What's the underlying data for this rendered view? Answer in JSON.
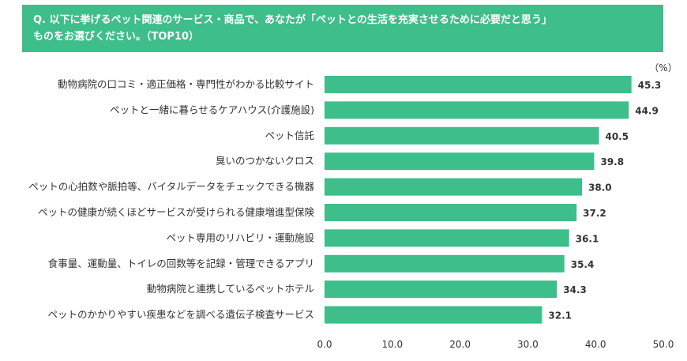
{
  "header": {
    "line1": "Q. 以下に挙げるペット関連のサービス・商品で、あなたが「ペットとの生活を充実させるために必要だと思う」",
    "line2": "ものをお選びください。（TOP10）"
  },
  "chart_data": {
    "type": "bar",
    "orientation": "horizontal",
    "unit": "（%）",
    "categories": [
      "動物病院の口コミ・適正価格・専門性がわかる比較サイト",
      "ペットと一緒に暮らせるケアハウス(介護施設)",
      "ペット信託",
      "臭いのつかないクロス",
      "ペットの心拍数や脈拍等、バイタルデータをチェックできる機器",
      "ペットの健康が続くほどサービスが受けられる健康増進型保険",
      "ペット専用のリハビリ・運動施設",
      "食事量、運動量、トイレの回数等を記録・管理できるアプリ",
      "動物病院と連携しているペットホテル",
      "ペットのかかりやすい疾患などを調べる遺伝子検査サービス"
    ],
    "values": [
      45.3,
      44.9,
      40.5,
      39.8,
      38.0,
      37.2,
      36.1,
      35.4,
      34.3,
      32.1
    ],
    "value_labels": [
      "45.3",
      "44.9",
      "40.5",
      "39.8",
      "38.0",
      "37.2",
      "36.1",
      "35.4",
      "34.3",
      "32.1"
    ],
    "xlim": [
      0,
      50
    ],
    "ticks": [
      "0.0",
      "10.0",
      "20.0",
      "30.0",
      "40.0",
      "50.0"
    ],
    "tick_values": [
      0,
      10,
      20,
      30,
      40,
      50
    ],
    "grid": false,
    "bar_color": "#3dbe8b"
  }
}
